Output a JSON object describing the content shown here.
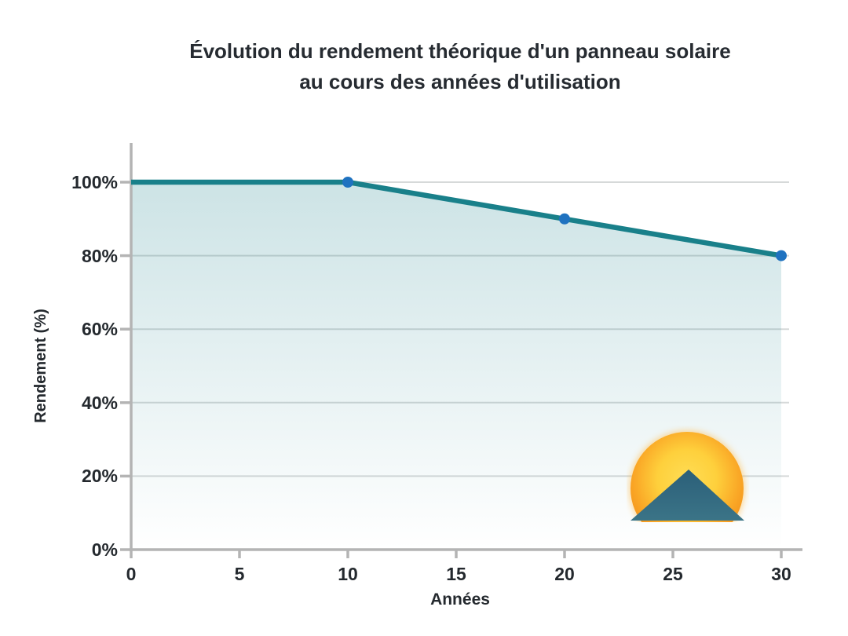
{
  "title": {
    "line1": "Évolution du rendement théorique d'un panneau solaire",
    "line2": "au cours des années d'utilisation"
  },
  "chart_data": {
    "type": "area",
    "title": "Évolution du rendement théorique d'un panneau solaire au cours des années d'utilisation",
    "xlabel": "Années",
    "ylabel": "Rendement (%)",
    "x": [
      0,
      10,
      20,
      30
    ],
    "values": [
      100,
      100,
      90,
      80
    ],
    "unit": "%",
    "marker_points": [
      [
        10,
        100
      ],
      [
        20,
        90
      ],
      [
        30,
        80
      ]
    ],
    "x_ticks": [
      "0",
      "5",
      "10",
      "15",
      "20",
      "25",
      "30"
    ],
    "x_tick_values": [
      0,
      5,
      10,
      15,
      20,
      25,
      30
    ],
    "y_ticks": [
      "0%",
      "20%",
      "40%",
      "60%",
      "80%",
      "100%"
    ],
    "y_tick_values": [
      0,
      20,
      40,
      60,
      80,
      100
    ],
    "xlim": [
      0,
      30
    ],
    "ylim": [
      0,
      100
    ],
    "grid": "horizontal-only",
    "legend": "none",
    "colors": {
      "line": "#19808a",
      "marker": "#1f72c0",
      "area_top": "rgba(25,128,138,0.22)",
      "area_bottom": "rgba(25,128,138,0)",
      "axis": "#b4b4b4",
      "gridline": "#d6d9d9",
      "text": "#262b31"
    }
  },
  "decoration": {
    "icon": "sunrise-over-mountains",
    "sun_color": "#fdbb2d",
    "mountain_color": "#33697e"
  }
}
